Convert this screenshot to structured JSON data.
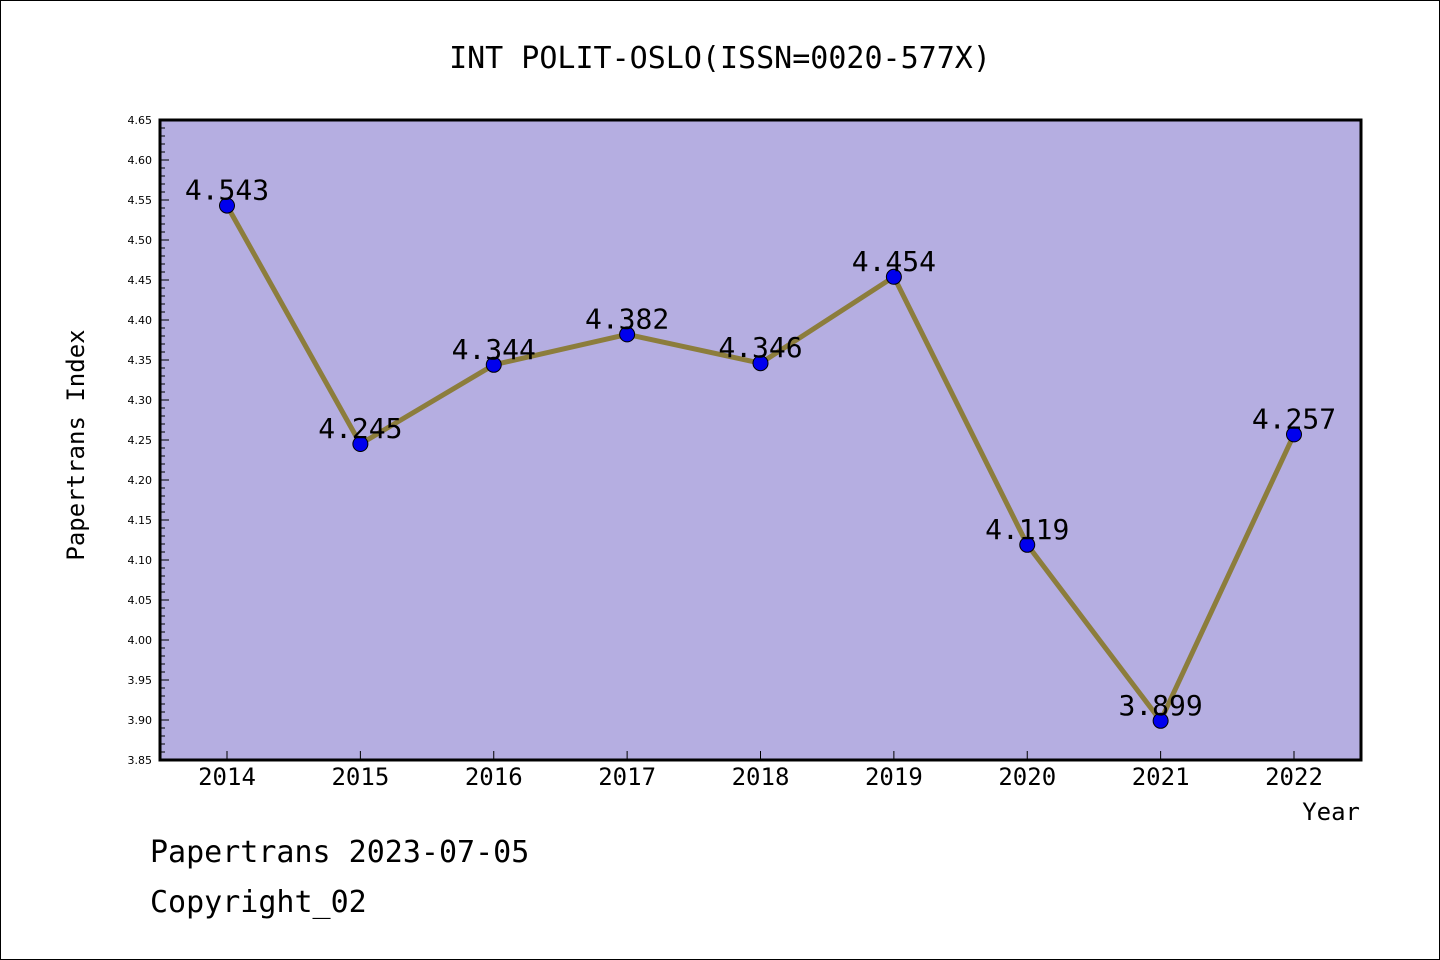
{
  "chart_data": {
    "type": "line",
    "title": "INT POLIT-OSLO(ISSN=0020-577X)",
    "xlabel": "Year",
    "ylabel": "Papertrans Index",
    "categories": [
      "2014",
      "2015",
      "2016",
      "2017",
      "2018",
      "2019",
      "2020",
      "2021",
      "2022"
    ],
    "series": [
      {
        "values": [
          4.543,
          4.245,
          4.344,
          4.382,
          4.346,
          4.454,
          4.119,
          3.899,
          4.257
        ],
        "labels": [
          "4.543",
          "4.245",
          "4.344",
          "4.382",
          "4.346",
          "4.454",
          "4.119",
          "3.899",
          "4.257"
        ]
      }
    ],
    "ylim": [
      3.85,
      4.65
    ],
    "yticks": [
      "3.85",
      "3.90",
      "3.95",
      "4.00",
      "4.05",
      "4.10",
      "4.15",
      "4.20",
      "4.25",
      "4.30",
      "4.35",
      "4.40",
      "4.45",
      "4.50",
      "4.55",
      "4.60",
      "4.65"
    ],
    "grid": false,
    "colors": {
      "plot_background": "#b5aee1",
      "line": "#8c7d3c",
      "marker": "#0000ee"
    }
  },
  "footer": {
    "date_text": "Papertrans 2023-07-05",
    "copyright_text": "Copyright_02"
  }
}
